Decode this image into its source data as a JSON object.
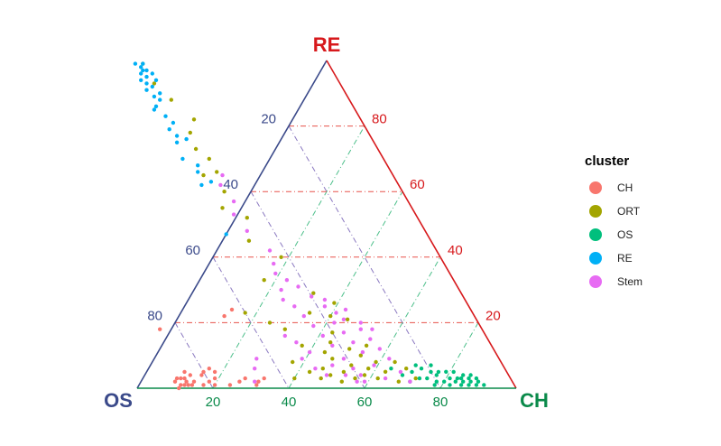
{
  "chart_data": {
    "type": "scatter",
    "subtype": "ternary",
    "grid": true,
    "legend_position": "right",
    "axes": {
      "top": {
        "label": "RE",
        "color": "#d7191c",
        "ticks": [
          "80",
          "60",
          "40",
          "20"
        ],
        "tick_color": "#d7191c"
      },
      "left": {
        "label": "OS",
        "color": "#3b4a8a",
        "ticks": [
          "20",
          "40",
          "60",
          "80"
        ],
        "tick_color": "#3b4a8a"
      },
      "right": {
        "label": "CH",
        "color": "#0a8a4a",
        "ticks": [
          "20",
          "40",
          "60",
          "80"
        ],
        "tick_color": "#0a8a4a"
      }
    },
    "legend": {
      "title": "cluster",
      "items": [
        {
          "name": "CH",
          "color": "#F8766D"
        },
        {
          "name": "ORT",
          "color": "#A3A500"
        },
        {
          "name": "OS",
          "color": "#00BF7D"
        },
        {
          "name": "RE",
          "color": "#00B0F6"
        },
        {
          "name": "Stem",
          "color": "#E76BF3"
        }
      ]
    },
    "series": [
      {
        "name": "CH",
        "color": "#F8766D",
        "points": [
          [
            75,
            1,
            24
          ],
          [
            79,
            1,
            20
          ],
          [
            80,
            2,
            18
          ],
          [
            82,
            1,
            17
          ],
          [
            84,
            2,
            14
          ],
          [
            85,
            1,
            14
          ],
          [
            86,
            2,
            12
          ],
          [
            87,
            1,
            12
          ],
          [
            88,
            1,
            11
          ],
          [
            89,
            0,
            11
          ],
          [
            89,
            2,
            9
          ],
          [
            88,
            3,
            9
          ],
          [
            84,
            4,
            12
          ],
          [
            81,
            4,
            15
          ],
          [
            78,
            3,
            19
          ],
          [
            77,
            5,
            18
          ],
          [
            85,
            5,
            10
          ],
          [
            86,
            3,
            11
          ],
          [
            87,
            3,
            10
          ],
          [
            86,
            1,
            13
          ],
          [
            65,
            3,
            32
          ],
          [
            67,
            2,
            31
          ],
          [
            68,
            1,
            31
          ],
          [
            70,
            3,
            27
          ],
          [
            78,
            6,
            16
          ],
          [
            72,
            2,
            26
          ],
          [
            80,
            5,
            15
          ],
          [
            85,
            18,
            -3
          ],
          [
            63,
            24,
            13
          ],
          [
            66,
            22,
            12
          ]
        ]
      },
      {
        "name": "ORT",
        "color": "#A3A500",
        "points": [
          [
            25,
            3,
            72
          ],
          [
            26,
            6,
            68
          ],
          [
            28,
            8,
            64
          ],
          [
            30,
            2,
            68
          ],
          [
            32,
            5,
            63
          ],
          [
            33,
            8,
            59
          ],
          [
            35,
            3,
            62
          ],
          [
            36,
            6,
            58
          ],
          [
            38,
            4,
            58
          ],
          [
            40,
            7,
            53
          ],
          [
            41,
            3,
            56
          ],
          [
            43,
            5,
            52
          ],
          [
            44,
            9,
            47
          ],
          [
            45,
            2,
            53
          ],
          [
            47,
            4,
            49
          ],
          [
            48,
            6,
            46
          ],
          [
            50,
            3,
            47
          ],
          [
            52,
            5,
            43
          ],
          [
            55,
            8,
            37
          ],
          [
            57,
            3,
            40
          ],
          [
            36,
            10,
            54
          ],
          [
            33,
            13,
            54
          ],
          [
            38,
            12,
            50
          ],
          [
            42,
            14,
            44
          ],
          [
            45,
            11,
            44
          ],
          [
            50,
            13,
            37
          ],
          [
            52,
            18,
            30
          ],
          [
            55,
            20,
            25
          ],
          [
            60,
            23,
            17
          ],
          [
            40,
            17,
            43
          ],
          [
            38,
            22,
            40
          ],
          [
            34,
            21,
            45
          ],
          [
            35,
            26,
            39
          ],
          [
            39,
            29,
            32
          ],
          [
            43,
            23,
            34
          ],
          [
            42,
            40,
            18
          ],
          [
            48,
            45,
            7
          ],
          [
            45,
            52,
            3
          ],
          [
            50,
            55,
            -5
          ],
          [
            47,
            60,
            -7
          ],
          [
            46,
            70,
            -16
          ],
          [
            47,
            78,
            -25
          ],
          [
            44,
            82,
            -26
          ],
          [
            47,
            88,
            -35
          ],
          [
            49,
            93,
            -42
          ],
          [
            49,
            99,
            -48
          ],
          [
            48,
            73,
            -21
          ],
          [
            50,
            65,
            -15
          ],
          [
            46,
            66,
            -12
          ],
          [
            50,
            33,
            17
          ]
        ]
      },
      {
        "name": "OS",
        "color": "#00BF7D",
        "points": [
          [
            8,
            1,
            91
          ],
          [
            9,
            2,
            89
          ],
          [
            10,
            1,
            89
          ],
          [
            11,
            2,
            87
          ],
          [
            12,
            1,
            87
          ],
          [
            13,
            3,
            84
          ],
          [
            14,
            1,
            85
          ],
          [
            15,
            2,
            83
          ],
          [
            16,
            3,
            81
          ],
          [
            17,
            1,
            82
          ],
          [
            18,
            2,
            80
          ],
          [
            19,
            4,
            77
          ],
          [
            20,
            2,
            78
          ],
          [
            21,
            1,
            78
          ],
          [
            22,
            3,
            75
          ],
          [
            9,
            3,
            88
          ],
          [
            10,
            4,
            86
          ],
          [
            12,
            4,
            84
          ],
          [
            14,
            5,
            81
          ],
          [
            16,
            5,
            79
          ],
          [
            18,
            5,
            77
          ],
          [
            20,
            5,
            75
          ],
          [
            22,
            6,
            72
          ],
          [
            24,
            3,
            73
          ],
          [
            25,
            5,
            70
          ],
          [
            27,
            2,
            71
          ],
          [
            28,
            4,
            68
          ],
          [
            30,
            6,
            64
          ],
          [
            23,
            7,
            70
          ],
          [
            19,
            7,
            74
          ],
          [
            14,
            3,
            83
          ],
          [
            11,
            3,
            86
          ],
          [
            13,
            2,
            85
          ]
        ]
      },
      {
        "name": "RE",
        "color": "#00B0F6",
        "points": [
          [
            49,
            99,
            -48
          ],
          [
            50,
            98,
            -48
          ],
          [
            49,
            97,
            -46
          ],
          [
            51,
            96,
            -47
          ],
          [
            50,
            95,
            -45
          ],
          [
            48,
            94,
            -42
          ],
          [
            51,
            93,
            -44
          ],
          [
            50,
            92,
            -42
          ],
          [
            52,
            91,
            -43
          ],
          [
            49,
            90,
            -39
          ],
          [
            51,
            89,
            -40
          ],
          [
            50,
            88,
            -38
          ],
          [
            52,
            86,
            -38
          ],
          [
            53,
            85,
            -38
          ],
          [
            51,
            83,
            -34
          ],
          [
            50,
            81,
            -31
          ],
          [
            52,
            79,
            -31
          ],
          [
            51,
            77,
            -28
          ],
          [
            49,
            76,
            -25
          ],
          [
            52,
            75,
            -27
          ],
          [
            53,
            70,
            -23
          ],
          [
            50,
            68,
            -18
          ],
          [
            51,
            66,
            -17
          ],
          [
            49,
            63,
            -12
          ],
          [
            52,
            62,
            -14
          ],
          [
            53,
            47,
            0
          ],
          [
            50,
            97,
            -47
          ],
          [
            51,
            99,
            -50
          ],
          [
            48,
            96,
            -44
          ],
          [
            52,
            94,
            -46
          ]
        ]
      },
      {
        "name": "Stem",
        "color": "#E76BF3",
        "points": [
          [
            27,
            2,
            71
          ],
          [
            28,
            5,
            67
          ],
          [
            29,
            9,
            62
          ],
          [
            30,
            12,
            58
          ],
          [
            31,
            15,
            54
          ],
          [
            32,
            18,
            50
          ],
          [
            33,
            3,
            64
          ],
          [
            34,
            7,
            59
          ],
          [
            35,
            11,
            54
          ],
          [
            36,
            14,
            50
          ],
          [
            37,
            17,
            46
          ],
          [
            38,
            20,
            42
          ],
          [
            39,
            2,
            59
          ],
          [
            40,
            6,
            54
          ],
          [
            41,
            9,
            50
          ],
          [
            42,
            13,
            45
          ],
          [
            43,
            16,
            41
          ],
          [
            44,
            19,
            37
          ],
          [
            45,
            22,
            33
          ],
          [
            46,
            25,
            29
          ],
          [
            36,
            23,
            41
          ],
          [
            38,
            25,
            37
          ],
          [
            40,
            28,
            32
          ],
          [
            42,
            31,
            27
          ],
          [
            44,
            33,
            23
          ],
          [
            37,
            27,
            36
          ],
          [
            35,
            21,
            44
          ],
          [
            33,
            24,
            43
          ],
          [
            31,
            20,
            49
          ],
          [
            29,
            18,
            53
          ],
          [
            47,
            30,
            23
          ],
          [
            48,
            27,
            25
          ],
          [
            46,
            35,
            19
          ],
          [
            45,
            38,
            17
          ],
          [
            44,
            42,
            14
          ],
          [
            47,
            48,
            5
          ],
          [
            48,
            53,
            -1
          ],
          [
            46,
            57,
            -3
          ],
          [
            47,
            62,
            -9
          ],
          [
            45,
            65,
            -10
          ],
          [
            39,
            4,
            57
          ],
          [
            41,
            2,
            57
          ],
          [
            43,
            4,
            53
          ],
          [
            48,
            4,
            48
          ],
          [
            50,
            6,
            44
          ],
          [
            52,
            9,
            39
          ],
          [
            45,
            7,
            48
          ],
          [
            49,
            11,
            40
          ],
          [
            51,
            14,
            35
          ],
          [
            53,
            16,
            31
          ],
          [
            68,
            2,
            30
          ],
          [
            66,
            6,
            28
          ],
          [
            64,
            9,
            27
          ]
        ]
      }
    ]
  }
}
